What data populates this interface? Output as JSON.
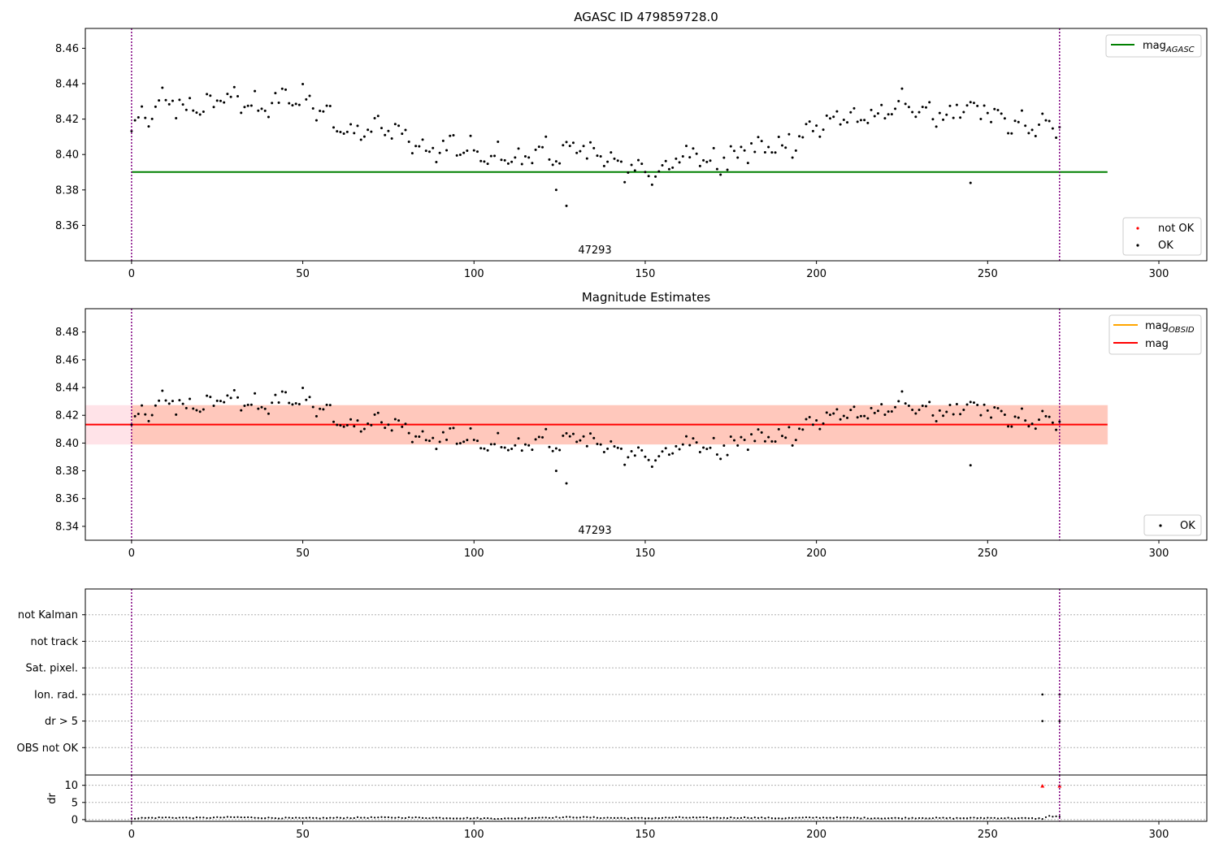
{
  "colors": {
    "agasc_line": "#008000",
    "obsid_line": "#ffa500",
    "mag_line": "#ff0000",
    "points_ok": "#000000",
    "points_not_ok": "#ff0000",
    "vline": "#800080",
    "band_pink": "#ffc0cb",
    "band_orange": "#ffa07a",
    "grid": "#b0b0b0"
  },
  "chart_data": [
    {
      "type": "scatter",
      "title": "AGASC ID 479859728.0",
      "xlim": [
        -13.5,
        314
      ],
      "ylim": [
        8.34,
        8.4712
      ],
      "xticks": [
        0,
        50,
        100,
        150,
        200,
        250,
        300
      ],
      "yticks": [
        8.36,
        8.38,
        8.4,
        8.42,
        8.44,
        8.46
      ],
      "vlines": [
        0,
        271
      ],
      "hlines": [
        {
          "name": "mag_AGASC",
          "y": 8.3901,
          "x_range": [
            0,
            285
          ]
        }
      ],
      "annotations": [
        {
          "text": "47293",
          "x": 135,
          "y": 8.3425
        }
      ],
      "legend_top": {
        "placement": "top-right",
        "entries": [
          {
            "label": "mag",
            "subscript": "AGASC",
            "kind": "line"
          }
        ]
      },
      "legend_bottom": {
        "placement": "lower-right",
        "entries": [
          {
            "label": "not OK",
            "kind": "marker",
            "color_key": "points_not_ok"
          },
          {
            "label": "OK",
            "kind": "marker",
            "color_key": "points_ok"
          }
        ]
      },
      "series": [
        {
          "name": "OK",
          "anchors": [
            [
              0,
              8.412
            ],
            [
              2,
              8.419
            ],
            [
              5,
              8.421
            ],
            [
              8,
              8.427
            ],
            [
              11,
              8.431
            ],
            [
              14,
              8.428
            ],
            [
              17,
              8.425
            ],
            [
              20,
              8.426
            ],
            [
              25,
              8.431
            ],
            [
              30,
              8.432
            ],
            [
              35,
              8.43
            ],
            [
              37,
              8.422
            ],
            [
              40,
              8.428
            ],
            [
              45,
              8.432
            ],
            [
              50,
              8.432
            ],
            [
              55,
              8.426
            ],
            [
              60,
              8.418
            ],
            [
              65,
              8.413
            ],
            [
              70,
              8.414
            ],
            [
              75,
              8.416
            ],
            [
              80,
              8.41
            ],
            [
              85,
              8.402
            ],
            [
              90,
              8.402
            ],
            [
              95,
              8.405
            ],
            [
              100,
              8.4
            ],
            [
              105,
              8.399
            ],
            [
              110,
              8.398
            ],
            [
              115,
              8.398
            ],
            [
              120,
              8.401
            ],
            [
              125,
              8.4
            ],
            [
              130,
              8.404
            ],
            [
              135,
              8.401
            ],
            [
              140,
              8.398
            ],
            [
              145,
              8.392
            ],
            [
              150,
              8.389
            ],
            [
              155,
              8.39
            ],
            [
              160,
              8.402
            ],
            [
              165,
              8.4
            ],
            [
              170,
              8.394
            ],
            [
              175,
              8.398
            ],
            [
              180,
              8.403
            ],
            [
              185,
              8.404
            ],
            [
              190,
              8.404
            ],
            [
              195,
              8.41
            ],
            [
              200,
              8.416
            ],
            [
              205,
              8.419
            ],
            [
              210,
              8.421
            ],
            [
              215,
              8.421
            ],
            [
              220,
              8.424
            ],
            [
              225,
              8.427
            ],
            [
              230,
              8.424
            ],
            [
              235,
              8.422
            ],
            [
              240,
              8.422
            ],
            [
              245,
              8.427
            ],
            [
              250,
              8.425
            ],
            [
              255,
              8.417
            ],
            [
              260,
              8.416
            ],
            [
              265,
              8.419
            ],
            [
              268,
              8.418
            ],
            [
              271,
              8.413
            ]
          ],
          "outliers": [
            [
              124,
              8.38
            ],
            [
              127,
              8.371
            ],
            [
              245,
              8.384
            ]
          ]
        }
      ]
    },
    {
      "type": "scatter",
      "title": "Magnitude Estimates",
      "xlim": [
        -13.5,
        314
      ],
      "ylim": [
        8.33,
        8.4968
      ],
      "xticks": [
        0,
        50,
        100,
        150,
        200,
        250,
        300
      ],
      "yticks": [
        8.34,
        8.36,
        8.38,
        8.4,
        8.42,
        8.44,
        8.46,
        8.48
      ],
      "vlines": [
        0,
        271
      ],
      "hlines": [
        {
          "name": "mag",
          "y": 8.4133,
          "x_range": [
            -13.5,
            285
          ]
        }
      ],
      "bands": [
        {
          "name": "pink",
          "y": [
            8.399,
            8.4273
          ],
          "x_range": [
            -13.5,
            285
          ]
        },
        {
          "name": "orange",
          "y": [
            8.399,
            8.4273
          ],
          "x_range": [
            0,
            285
          ]
        }
      ],
      "annotations": [
        {
          "text": "47293",
          "x": 135,
          "y": 8.3315
        }
      ],
      "legend_top": {
        "placement": "top-right",
        "entries": [
          {
            "label": "mag",
            "subscript": "OBSID",
            "kind": "line",
            "color_key": "obsid_line"
          },
          {
            "label": "mag",
            "kind": "line",
            "color_key": "mag_line"
          }
        ]
      },
      "legend_bottom": {
        "placement": "lower-right",
        "entries": [
          {
            "label": "OK",
            "kind": "marker",
            "color_key": "points_ok"
          }
        ]
      }
    },
    {
      "type": "scatter",
      "categories": [
        "not Kalman",
        "not track",
        "Sat. pixel.",
        "Ion. rad.",
        "dr > 5",
        "OBS not OK"
      ],
      "flag_points": [
        {
          "category": "Ion. rad.",
          "x": [
            266,
            271
          ]
        },
        {
          "category": "dr > 5",
          "x": [
            266,
            271
          ]
        }
      ],
      "vlines": [
        0,
        271
      ],
      "xlim": [
        -13.5,
        314
      ],
      "xticks": [
        0,
        50,
        100,
        150,
        200,
        250,
        300
      ]
    },
    {
      "type": "scatter",
      "ylabel": "dr",
      "ylim": [
        -0.5,
        13
      ],
      "yticks": [
        0,
        5,
        10
      ],
      "xlim": [
        -13.5,
        314
      ],
      "xticks": [
        0,
        50,
        100,
        150,
        200,
        250,
        300
      ],
      "vlines": [
        0,
        271
      ],
      "series": [
        {
          "name": "OK",
          "anchors": [
            [
              0,
              0.4
            ],
            [
              10,
              0.6
            ],
            [
              20,
              0.5
            ],
            [
              30,
              0.7
            ],
            [
              40,
              0.5
            ],
            [
              50,
              0.4
            ],
            [
              60,
              0.5
            ],
            [
              70,
              0.6
            ],
            [
              80,
              0.6
            ],
            [
              90,
              0.5
            ],
            [
              100,
              0.4
            ],
            [
              110,
              0.3
            ],
            [
              120,
              0.6
            ],
            [
              130,
              0.7
            ],
            [
              140,
              0.5
            ],
            [
              150,
              0.4
            ],
            [
              160,
              0.6
            ],
            [
              170,
              0.5
            ],
            [
              180,
              0.6
            ],
            [
              190,
              0.4
            ],
            [
              200,
              0.6
            ],
            [
              210,
              0.5
            ],
            [
              220,
              0.4
            ],
            [
              230,
              0.5
            ],
            [
              240,
              0.4
            ],
            [
              250,
              0.5
            ],
            [
              260,
              0.4
            ],
            [
              266,
              0.3
            ],
            [
              268,
              1.0
            ],
            [
              271,
              0.9
            ]
          ]
        },
        {
          "name": "not OK",
          "points": [
            [
              266,
              9.8
            ],
            [
              271,
              9.8
            ]
          ]
        }
      ]
    }
  ]
}
